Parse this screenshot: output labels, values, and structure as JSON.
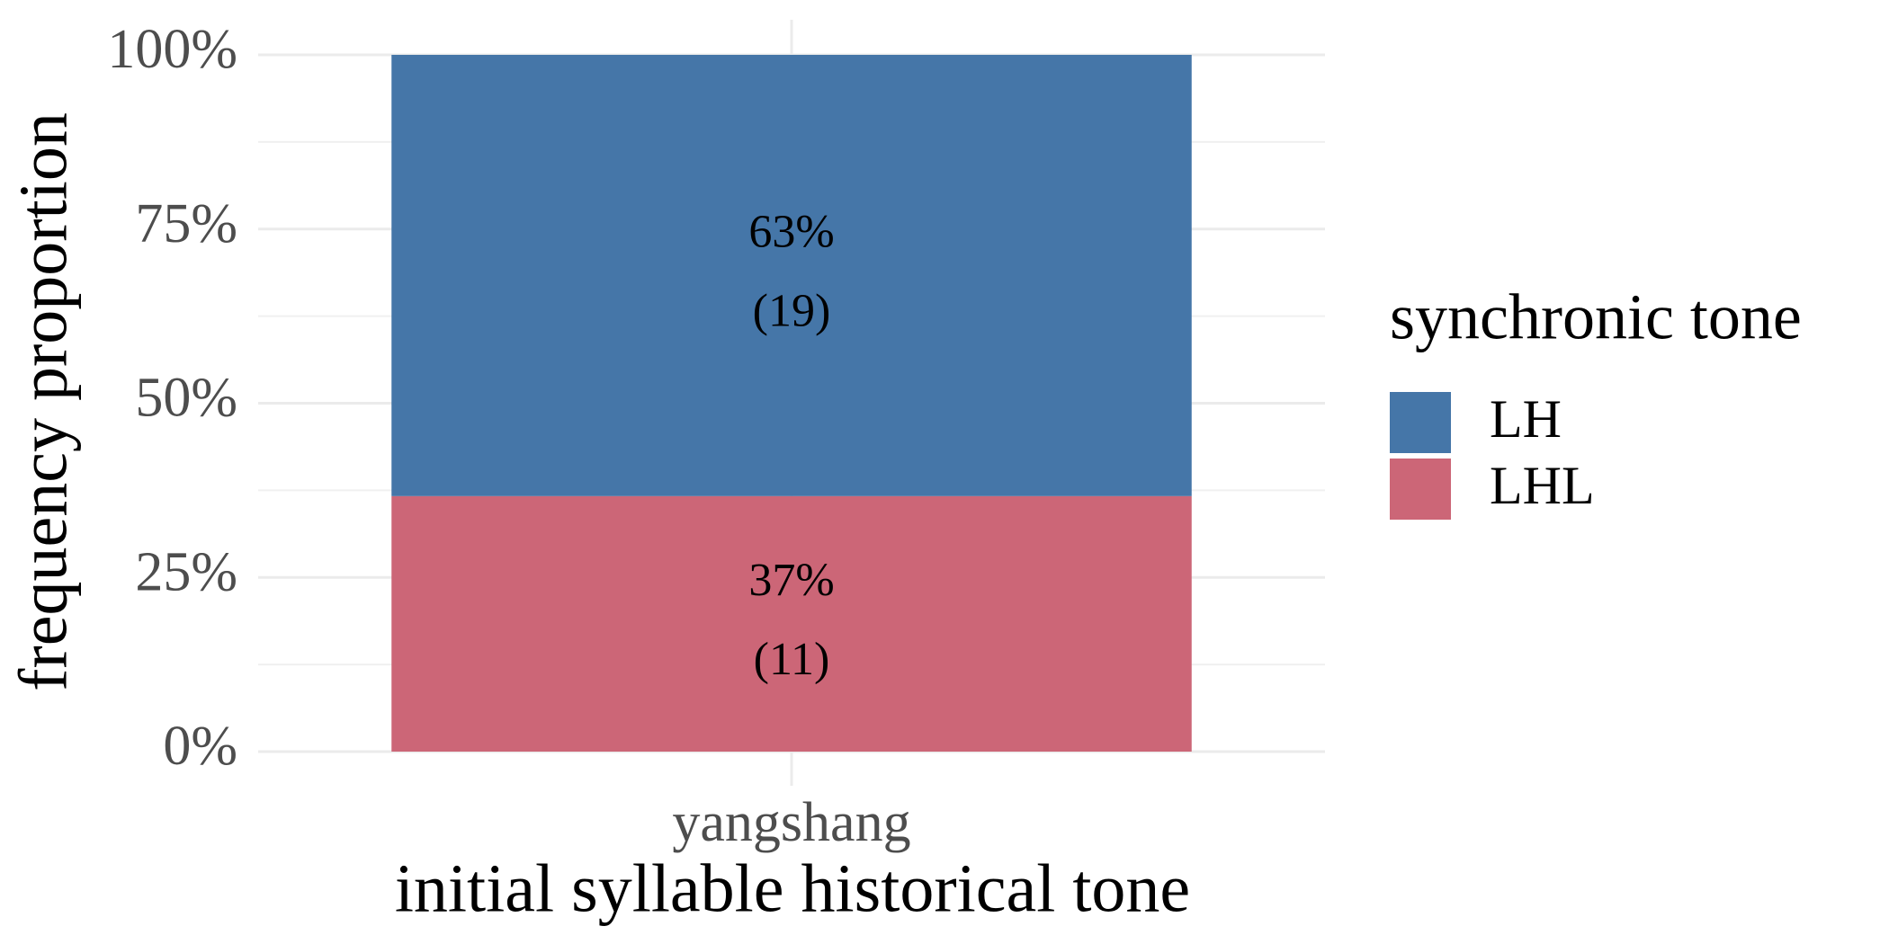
{
  "chart_data": {
    "type": "stacked_bar",
    "x_label": "initial syllable historical tone",
    "y_label": "frequency proportion",
    "legend_title": "synchronic tone",
    "legend_position": "right",
    "categories": [
      "yangshang"
    ],
    "series": [
      {
        "name": "LH",
        "color": "#4576a8",
        "values": [
          63.33
        ],
        "value_labels": [
          "63%"
        ],
        "count_labels": [
          "(19)"
        ]
      },
      {
        "name": "LHL",
        "color": "#cc6677",
        "values": [
          36.67
        ],
        "value_labels": [
          "37%"
        ],
        "count_labels": [
          "(11)"
        ]
      }
    ],
    "ylim": [
      0,
      100
    ],
    "yticks": [
      {
        "value": 0,
        "label": "0%"
      },
      {
        "value": 25,
        "label": "25%"
      },
      {
        "value": 50,
        "label": "50%"
      },
      {
        "value": 75,
        "label": "75%"
      },
      {
        "value": 100,
        "label": "100%"
      }
    ],
    "grid": true
  }
}
